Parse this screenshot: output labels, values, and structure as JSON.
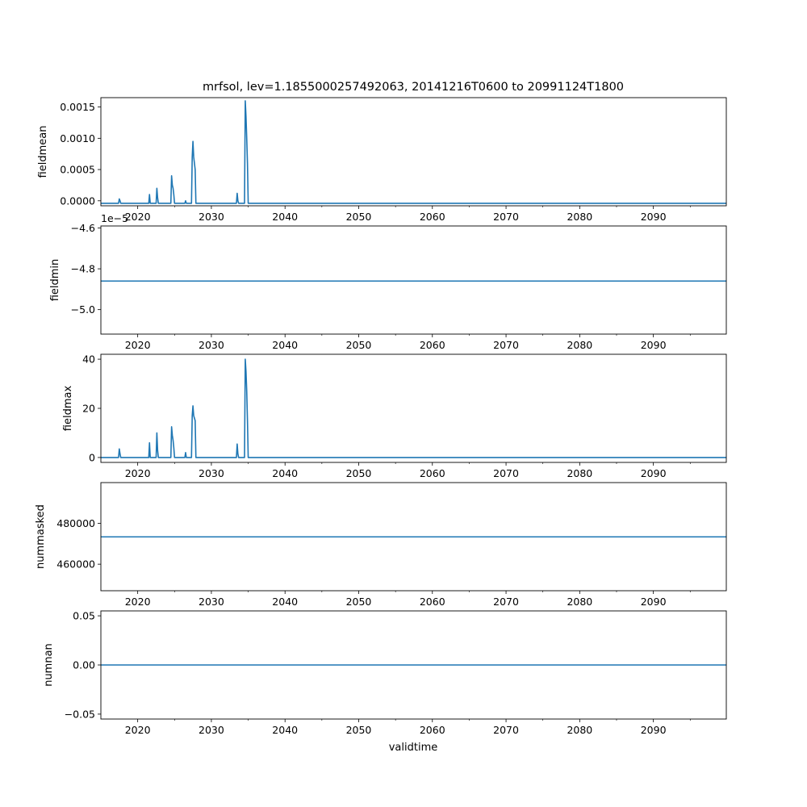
{
  "figure": {
    "title": "mrfsol, lev=1.1855000257492063, 20141216T0600 to 20991124T1800",
    "xlabel": "validtime"
  },
  "chart_data": [
    {
      "type": "line",
      "ylabel": "fieldmean",
      "xlim": [
        2015.0,
        2099.9
      ],
      "ylim": [
        -8e-05,
        0.00165
      ],
      "yticks": [
        0.0,
        0.0005,
        0.001,
        0.0015
      ],
      "yticklabels": [
        "0.0000",
        "0.0005",
        "0.0010",
        "0.0015"
      ],
      "xticks": [
        2020,
        2030,
        2040,
        2050,
        2060,
        2070,
        2080,
        2090
      ],
      "xticklabels": [
        "2020",
        "2030",
        "2040",
        "2050",
        "2060",
        "2070",
        "2080",
        "2090"
      ],
      "offset_text": "",
      "color": "#1f77b4",
      "x": [
        2015.0,
        2017.4,
        2017.5,
        2017.6,
        2017.7,
        2021.5,
        2021.6,
        2021.7,
        2022.5,
        2022.6,
        2022.7,
        2022.8,
        2024.5,
        2024.6,
        2024.7,
        2024.8,
        2024.9,
        2025.0,
        2026.4,
        2026.5,
        2026.6,
        2027.3,
        2027.4,
        2027.5,
        2027.6,
        2027.8,
        2027.9,
        2033.4,
        2033.5,
        2033.6,
        2033.7,
        2034.5,
        2034.6,
        2034.7,
        2034.8,
        2034.9,
        2035.0,
        2099.9
      ],
      "y": [
        -4e-05,
        -4e-05,
        3e-05,
        0.0,
        -4e-05,
        -4e-05,
        0.0001,
        -4e-05,
        -4e-05,
        0.0002,
        5e-05,
        -4e-05,
        -4e-05,
        0.0004,
        0.00025,
        0.0002,
        0.0001,
        -4e-05,
        -4e-05,
        0.0,
        -4e-05,
        -4e-05,
        0.0007,
        0.00095,
        0.0007,
        0.0005,
        -4e-05,
        -4e-05,
        0.00012,
        0.0,
        -4e-05,
        -4e-05,
        0.0016,
        0.00135,
        0.001,
        0.0006,
        -4e-05,
        -4e-05
      ]
    },
    {
      "type": "line",
      "ylabel": "fieldmin",
      "xlim": [
        2015.0,
        2099.9
      ],
      "ylim": [
        -5.12,
        -4.59
      ],
      "yticks": [
        -5.0,
        -4.8,
        -4.6
      ],
      "yticklabels": [
        "−5.0",
        "−4.8",
        "−4.6"
      ],
      "xticks": [
        2020,
        2030,
        2040,
        2050,
        2060,
        2070,
        2080,
        2090
      ],
      "xticklabels": [
        "2020",
        "2030",
        "2040",
        "2050",
        "2060",
        "2070",
        "2080",
        "2090"
      ],
      "offset_text": "1e−5",
      "color": "#1f77b4",
      "x": [
        2015.0,
        2099.9
      ],
      "y": [
        -4.86,
        -4.86
      ]
    },
    {
      "type": "line",
      "ylabel": "fieldmax",
      "xlim": [
        2015.0,
        2099.9
      ],
      "ylim": [
        -2.0,
        42.0
      ],
      "yticks": [
        0,
        20,
        40
      ],
      "yticklabels": [
        "0",
        "20",
        "40"
      ],
      "xticks": [
        2020,
        2030,
        2040,
        2050,
        2060,
        2070,
        2080,
        2090
      ],
      "xticklabels": [
        "2020",
        "2030",
        "2040",
        "2050",
        "2060",
        "2070",
        "2080",
        "2090"
      ],
      "offset_text": "",
      "color": "#1f77b4",
      "x": [
        2015.0,
        2017.4,
        2017.5,
        2017.6,
        2017.7,
        2021.5,
        2021.6,
        2021.7,
        2022.5,
        2022.6,
        2022.7,
        2022.8,
        2024.5,
        2024.6,
        2024.7,
        2024.8,
        2024.9,
        2025.0,
        2026.4,
        2026.5,
        2026.6,
        2027.3,
        2027.4,
        2027.5,
        2027.6,
        2027.8,
        2027.9,
        2033.4,
        2033.5,
        2033.6,
        2033.7,
        2034.5,
        2034.6,
        2034.7,
        2034.8,
        2034.9,
        2035.0,
        2099.9
      ],
      "y": [
        0,
        0,
        3.5,
        1.5,
        0,
        0,
        6,
        0,
        0,
        10,
        3,
        0,
        0,
        12.5,
        9,
        7,
        4,
        0,
        0,
        2,
        0,
        0,
        17,
        21,
        17,
        15,
        0,
        0,
        5.5,
        1.5,
        0,
        0,
        40,
        35,
        27,
        15,
        0,
        0
      ]
    },
    {
      "type": "line",
      "ylabel": "nummasked",
      "xlim": [
        2015.0,
        2099.9
      ],
      "ylim": [
        447000,
        500000
      ],
      "yticks": [
        460000,
        480000
      ],
      "yticklabels": [
        "460000",
        "480000"
      ],
      "xticks": [
        2020,
        2030,
        2040,
        2050,
        2060,
        2070,
        2080,
        2090
      ],
      "xticklabels": [
        "2020",
        "2030",
        "2040",
        "2050",
        "2060",
        "2070",
        "2080",
        "2090"
      ],
      "offset_text": "",
      "color": "#1f77b4",
      "x": [
        2015.0,
        2099.9
      ],
      "y": [
        473400,
        473400
      ]
    },
    {
      "type": "line",
      "ylabel": "numnan",
      "xlim": [
        2015.0,
        2099.9
      ],
      "ylim": [
        -0.055,
        0.055
      ],
      "yticks": [
        -0.05,
        0.0,
        0.05
      ],
      "yticklabels": [
        "−0.05",
        "0.00",
        "0.05"
      ],
      "xticks": [
        2020,
        2030,
        2040,
        2050,
        2060,
        2070,
        2080,
        2090
      ],
      "xticklabels": [
        "2020",
        "2030",
        "2040",
        "2050",
        "2060",
        "2070",
        "2080",
        "2090"
      ],
      "offset_text": "",
      "color": "#1f77b4",
      "x": [
        2015.0,
        2099.9
      ],
      "y": [
        0.0,
        0.0
      ]
    }
  ]
}
